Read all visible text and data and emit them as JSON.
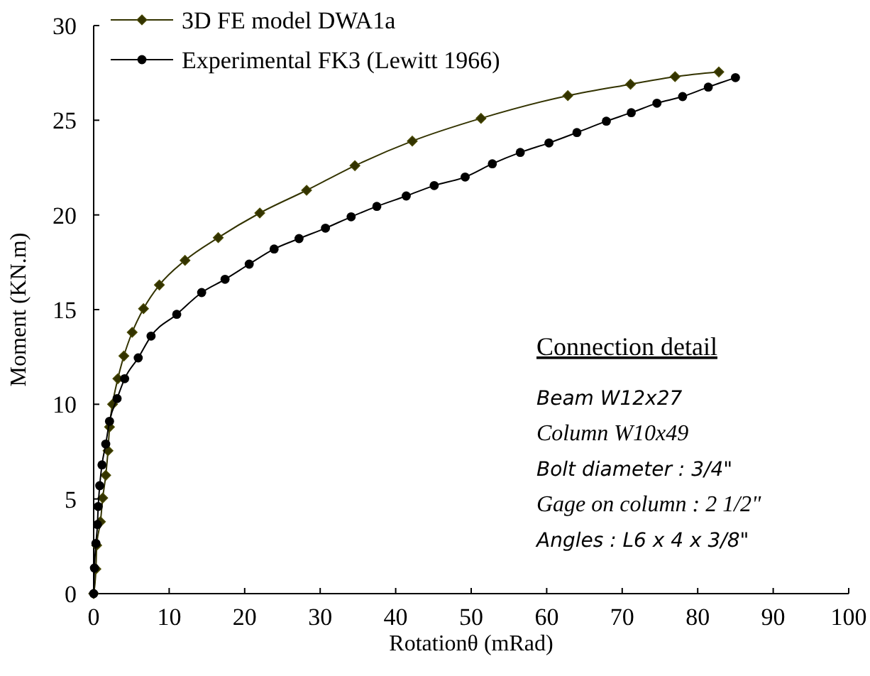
{
  "chart_data": {
    "type": "line",
    "xlabel": "Rotationθ  (mRad)",
    "ylabel": "Moment (KN.m)",
    "xlim": [
      0,
      100
    ],
    "xticks": [
      0,
      10,
      20,
      30,
      40,
      50,
      60,
      70,
      80,
      90,
      100
    ],
    "ylim": [
      0,
      30
    ],
    "yticks": [
      0,
      5,
      10,
      15,
      20,
      25,
      30
    ],
    "grid": false,
    "legend": "top left",
    "line_style": "solid",
    "series": [
      {
        "name": "3D FE model DWA1a",
        "color": "#333300",
        "marker": "diamond",
        "x": [
          0,
          0.3,
          0.4,
          0.9,
          1.2,
          1.6,
          1.9,
          2.1,
          2.5,
          3.2,
          4.0,
          5.1,
          6.6,
          8.7,
          12.1,
          16.5,
          22.0,
          28.2,
          34.6,
          42.2,
          51.3,
          62.8,
          71.1,
          77.0,
          82.8
        ],
        "values": [
          0,
          1.3,
          2.55,
          3.8,
          5.05,
          6.25,
          7.55,
          8.8,
          10.0,
          11.35,
          12.55,
          13.8,
          15.05,
          16.3,
          17.6,
          18.8,
          20.1,
          21.3,
          22.6,
          23.9,
          25.1,
          26.3,
          26.9,
          27.3,
          27.55
        ]
      },
      {
        "name": "Experimental FK3 (Lewitt 1966)",
        "color": "#000000",
        "marker": "circle",
        "x": [
          0,
          0.1,
          0.3,
          0.5,
          0.6,
          0.8,
          1.1,
          1.6,
          2.1,
          3.1,
          4.1,
          5.9,
          7.6,
          11.0,
          14.3,
          17.4,
          20.6,
          23.9,
          27.2,
          30.7,
          34.1,
          37.5,
          41.4,
          45.1,
          49.2,
          52.8,
          56.5,
          60.3,
          64.0,
          67.9,
          71.2,
          74.6,
          78.0,
          81.4,
          85.0
        ],
        "values": [
          0,
          1.35,
          2.65,
          3.65,
          4.6,
          5.7,
          6.8,
          7.9,
          9.1,
          10.3,
          11.35,
          12.45,
          13.6,
          14.75,
          15.9,
          16.6,
          17.4,
          18.2,
          18.75,
          19.3,
          19.9,
          20.45,
          21.0,
          21.55,
          22.0,
          22.7,
          23.3,
          23.8,
          24.35,
          24.95,
          25.4,
          25.9,
          26.25,
          26.75,
          27.25
        ]
      }
    ],
    "annotations": [
      "Connection detail",
      "Beam W12x27",
      "Column W10x49",
      "Bolt diameter : 3/4\"",
      "Gage on column : 2 1/2\"",
      "Angles : L6 x 4 x 3/8\""
    ]
  }
}
